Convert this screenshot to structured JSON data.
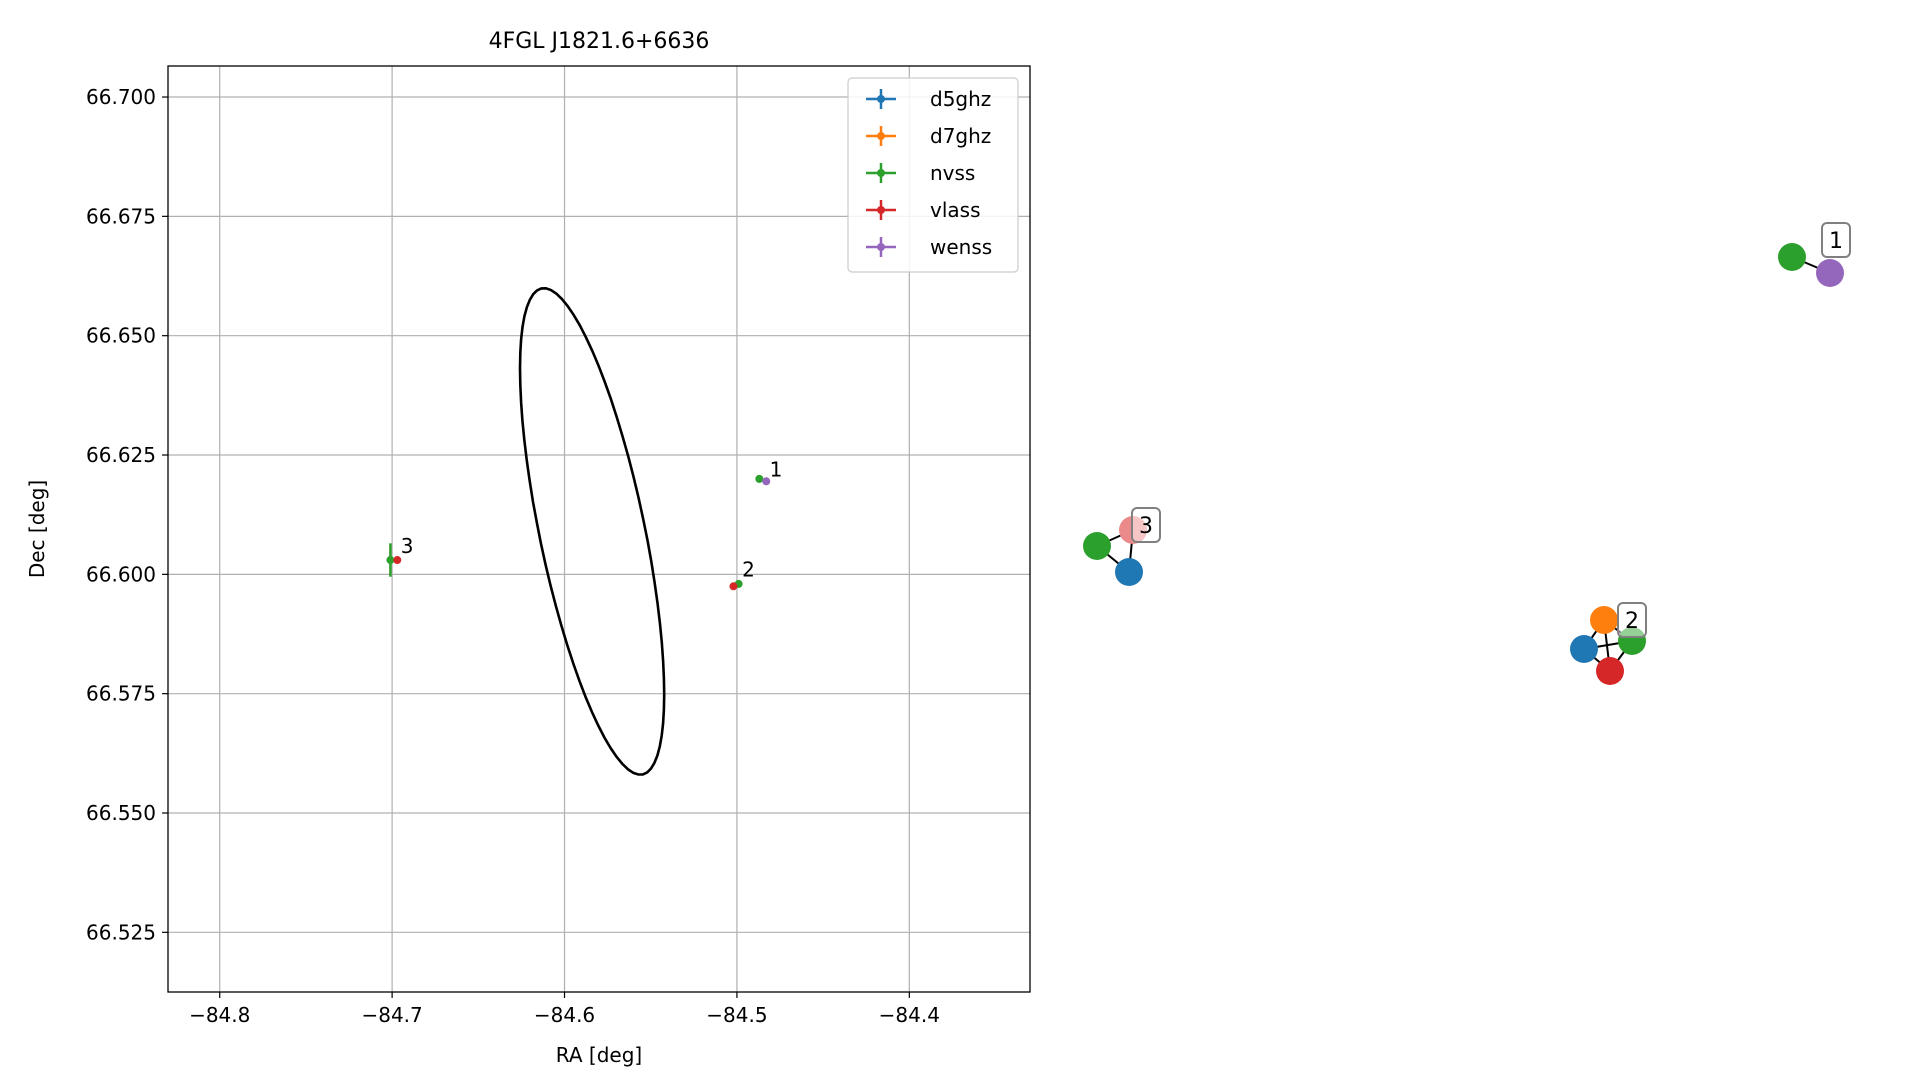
{
  "chart_data": [
    {
      "type": "scatter",
      "title": "4FGL J1821.6+6636",
      "xlabel": "RA [deg]",
      "ylabel": "Dec [deg]",
      "xlim": [
        -84.83,
        -84.33
      ],
      "ylim": [
        66.5125,
        66.7065
      ],
      "x_ticks": [
        -84.8,
        -84.7,
        -84.6,
        -84.5,
        -84.4
      ],
      "x_tick_labels": [
        "−84.8",
        "−84.7",
        "−84.6",
        "−84.5",
        "−84.4"
      ],
      "y_ticks": [
        66.525,
        66.55,
        66.575,
        66.6,
        66.625,
        66.65,
        66.675,
        66.7
      ],
      "y_tick_labels": [
        "66.525",
        "66.550",
        "66.575",
        "66.600",
        "66.625",
        "66.650",
        "66.675",
        "66.700"
      ],
      "grid": true,
      "legend_position": "top-right",
      "series": [
        {
          "name": "d5ghz",
          "color": "#1f77b4",
          "points": []
        },
        {
          "name": "d7ghz",
          "color": "#ff7f0e",
          "points": []
        },
        {
          "name": "nvss",
          "color": "#2ca02c",
          "points": [
            {
              "x": -84.487,
              "y": 66.62,
              "xerr": 0.001,
              "yerr": 0.0008
            },
            {
              "x": -84.499,
              "y": 66.598,
              "xerr": 0.001,
              "yerr": 0.0008
            },
            {
              "x": -84.701,
              "y": 66.603,
              "xerr": 0.001,
              "yerr": 0.0035
            }
          ]
        },
        {
          "name": "vlass",
          "color": "#d62728",
          "points": [
            {
              "x": -84.502,
              "y": 66.5975,
              "xerr": 0.0005,
              "yerr": 0.0005
            },
            {
              "x": -84.697,
              "y": 66.603,
              "xerr": 0.0005,
              "yerr": 0.0005
            }
          ]
        },
        {
          "name": "wenss",
          "color": "#9467bd",
          "points": [
            {
              "x": -84.483,
              "y": 66.6195,
              "xerr": 0.001,
              "yerr": 0.0008
            }
          ]
        }
      ],
      "annotations": [
        {
          "text": "1",
          "x": -84.481,
          "y": 66.6205
        },
        {
          "text": "2",
          "x": -84.497,
          "y": 66.5995
        },
        {
          "text": "3",
          "x": -84.695,
          "y": 66.6045
        }
      ],
      "ellipse": {
        "center_x": -84.584,
        "center_y": 66.609,
        "semi_major_deg": 0.0605,
        "semi_minor_deg": 0.0262,
        "angle_deg": -53.3,
        "color": "#000000"
      }
    },
    {
      "type": "network",
      "clusters": [
        {
          "label": "1",
          "nodes": [
            {
              "id": "nvss",
              "color": "#2ca02c"
            },
            {
              "id": "wenss",
              "color": "#9467bd"
            }
          ],
          "edges": [
            [
              "nvss",
              "wenss"
            ]
          ]
        },
        {
          "label": "2",
          "nodes": [
            {
              "id": "d7ghz",
              "color": "#ff7f0e"
            },
            {
              "id": "nvss",
              "color": "#2ca02c"
            },
            {
              "id": "d5ghz",
              "color": "#1f77b4"
            },
            {
              "id": "vlass",
              "color": "#d62728"
            }
          ],
          "edges": [
            [
              "d7ghz",
              "nvss"
            ],
            [
              "d7ghz",
              "d5ghz"
            ],
            [
              "d7ghz",
              "vlass"
            ],
            [
              "nvss",
              "d5ghz"
            ],
            [
              "nvss",
              "vlass"
            ],
            [
              "d5ghz",
              "vlass"
            ]
          ]
        },
        {
          "label": "3",
          "nodes": [
            {
              "id": "nvss",
              "color": "#2ca02c"
            },
            {
              "id": "vlass",
              "color": "#ec8a8b"
            },
            {
              "id": "d5ghz",
              "color": "#1f77b4"
            }
          ],
          "edges": [
            [
              "nvss",
              "vlass"
            ],
            [
              "nvss",
              "d5ghz"
            ],
            [
              "vlass",
              "d5ghz"
            ]
          ]
        }
      ]
    }
  ]
}
